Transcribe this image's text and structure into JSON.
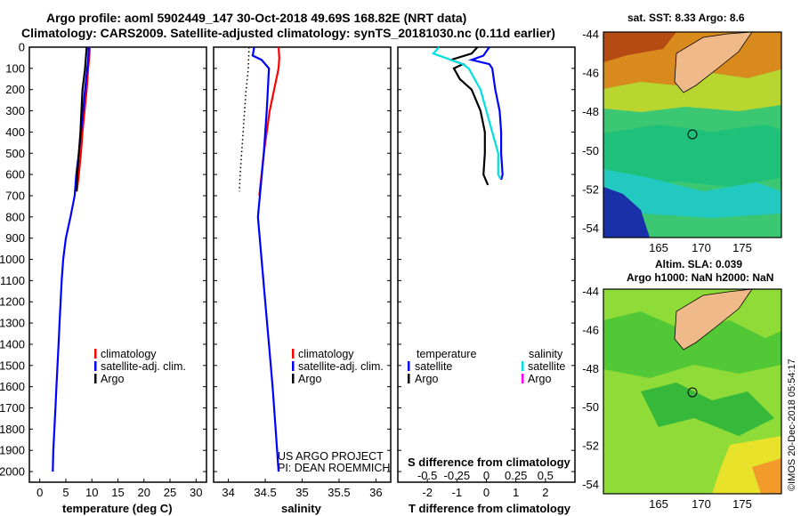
{
  "header": {
    "line1": "Argo profile: aoml 5902449_147 30-Oct-2018 49.69S 168.82E (NRT data)",
    "line2": "Climatology: CARS2009. Satellite-adjusted climatology: synTS_20181030.nc (0.11d earlier)"
  },
  "depth_ticks": [
    "0",
    "100",
    "200",
    "300",
    "400",
    "500",
    "600",
    "700",
    "800",
    "900",
    "1000",
    "1100",
    "1200",
    "1300",
    "1400",
    "1500",
    "1600",
    "1700",
    "1800",
    "1900",
    "2000"
  ],
  "colors": {
    "climatology": "#ff0000",
    "satellite": "#0000ff",
    "argo": "#000000",
    "sat_salinity": "#00e0e0",
    "argo_salinity": "#ff00ff"
  },
  "chart_data": [
    {
      "type": "line",
      "panel": "temperature",
      "xlabel": "temperature (deg C)",
      "xlim": [
        -2,
        32
      ],
      "ylim": [
        2050,
        0
      ],
      "xticks": [
        "0",
        "5",
        "10",
        "15",
        "20",
        "25",
        "30"
      ],
      "legend": [
        "climatology",
        "satellite-adj. clim.",
        "Argo"
      ],
      "series": [
        {
          "name": "climatology",
          "depth": [
            0,
            50,
            100,
            200,
            300,
            400,
            500,
            600,
            680
          ],
          "values": [
            9.6,
            9.5,
            9.3,
            9.0,
            8.6,
            8.2,
            7.9,
            7.5,
            7.1
          ]
        },
        {
          "name": "satellite-adj. clim.",
          "depth": [
            0,
            60,
            100,
            200,
            300,
            400,
            500,
            600,
            700,
            800,
            900,
            1000,
            1100,
            1200,
            1300,
            1400,
            1500,
            1600,
            1700,
            1800,
            1900,
            2000
          ],
          "values": [
            9.4,
            9.3,
            9.1,
            8.7,
            8.3,
            7.9,
            7.5,
            7.0,
            6.7,
            5.9,
            5.0,
            4.5,
            4.2,
            4.0,
            3.8,
            3.6,
            3.4,
            3.2,
            3.0,
            2.8,
            2.6,
            2.5
          ]
        },
        {
          "name": "Argo",
          "depth": [
            0,
            100,
            200,
            300,
            400,
            500,
            600,
            680
          ],
          "values": [
            9.0,
            8.7,
            8.2,
            8.0,
            7.8,
            7.5,
            7.2,
            7.0
          ]
        }
      ]
    },
    {
      "type": "line",
      "panel": "salinity",
      "xlabel": "salinity",
      "xlim": [
        33.8,
        36.2
      ],
      "ylim": [
        2050,
        0
      ],
      "xticks": [
        "34",
        "34.5",
        "35",
        "35.5",
        "36"
      ],
      "legend": [
        "climatology",
        "satellite-adj. clim.",
        "Argo"
      ],
      "notes": [
        "US ARGO PROJECT",
        "PI: DEAN ROEMMICH"
      ],
      "series": [
        {
          "name": "climatology",
          "depth": [
            0,
            50,
            100,
            150,
            200,
            300,
            400,
            500,
            600,
            700
          ],
          "values": [
            34.68,
            34.69,
            34.68,
            34.65,
            34.62,
            34.56,
            34.52,
            34.48,
            34.45,
            34.42
          ]
        },
        {
          "name": "satellite-adj. clim.",
          "depth": [
            0,
            20,
            40,
            60,
            100,
            300,
            500,
            800,
            1000,
            1200,
            1400,
            1600,
            1800,
            2000
          ],
          "values": [
            34.35,
            34.34,
            34.33,
            34.45,
            34.55,
            34.52,
            34.48,
            34.4,
            34.45,
            34.5,
            34.55,
            34.6,
            34.64,
            34.68
          ]
        },
        {
          "name": "Argo",
          "depth": [
            0,
            100,
            200,
            300,
            400,
            500,
            600,
            680
          ],
          "values": [
            34.28,
            34.27,
            34.24,
            34.22,
            34.2,
            34.18,
            34.16,
            34.15
          ]
        }
      ]
    },
    {
      "type": "line",
      "panel": "difference",
      "xlabel": "T difference from climatology",
      "xlabel_top": "S difference from climatology",
      "xlim": [
        -3,
        3
      ],
      "ylim": [
        2050,
        0
      ],
      "xticks": [
        "-2",
        "-1",
        "0",
        "1",
        "2"
      ],
      "xticks_top": [
        "-0.5",
        "-0.25",
        "0",
        "0.25",
        "0.5"
      ],
      "legend_temperature": [
        "temperature",
        "satellite",
        "Argo"
      ],
      "legend_salinity": [
        "salinity",
        "satellite",
        "Argo"
      ],
      "series": [
        {
          "name": "temperature satellite",
          "depth": [
            0,
            40,
            60,
            80,
            100,
            200,
            300,
            400,
            500,
            600,
            625
          ],
          "values": [
            0.1,
            -0.1,
            -0.5,
            0.1,
            0.2,
            0.3,
            0.45,
            0.5,
            0.5,
            0.55,
            0.5
          ]
        },
        {
          "name": "temperature Argo",
          "depth": [
            0,
            30,
            60,
            80,
            100,
            150,
            200,
            300,
            400,
            500,
            600,
            650
          ],
          "values": [
            -0.3,
            -0.5,
            -1.2,
            -0.8,
            -1.1,
            -0.9,
            -0.5,
            -0.2,
            -0.05,
            -0.05,
            -0.1,
            0.05
          ]
        },
        {
          "name": "salinity satellite",
          "depth": [
            0,
            30,
            60,
            80,
            100,
            200,
            300,
            400,
            500,
            600,
            620
          ],
          "values": [
            -0.4,
            -0.45,
            -0.3,
            -0.2,
            -0.15,
            -0.05,
            0.0,
            0.05,
            0.1,
            0.1,
            0.12
          ]
        }
      ]
    }
  ],
  "map_sst": {
    "title": "sat. SST: 8.33 Argo: 8.6",
    "lat_ticks": [
      "-44",
      "-46",
      "-48",
      "-50",
      "-52",
      "-54"
    ],
    "lon_ticks": [
      "165",
      "170",
      "175"
    ]
  },
  "map_sla": {
    "title1": "Altim. SLA: 0.039",
    "title2": "Argo h1000: NaN h2000: NaN",
    "lat_ticks": [
      "-44",
      "-46",
      "-48",
      "-50",
      "-52",
      "-54"
    ],
    "lon_ticks": [
      "165",
      "170",
      "175"
    ]
  },
  "credit": "©IMOS 20-Dec-2018 05:54:17"
}
